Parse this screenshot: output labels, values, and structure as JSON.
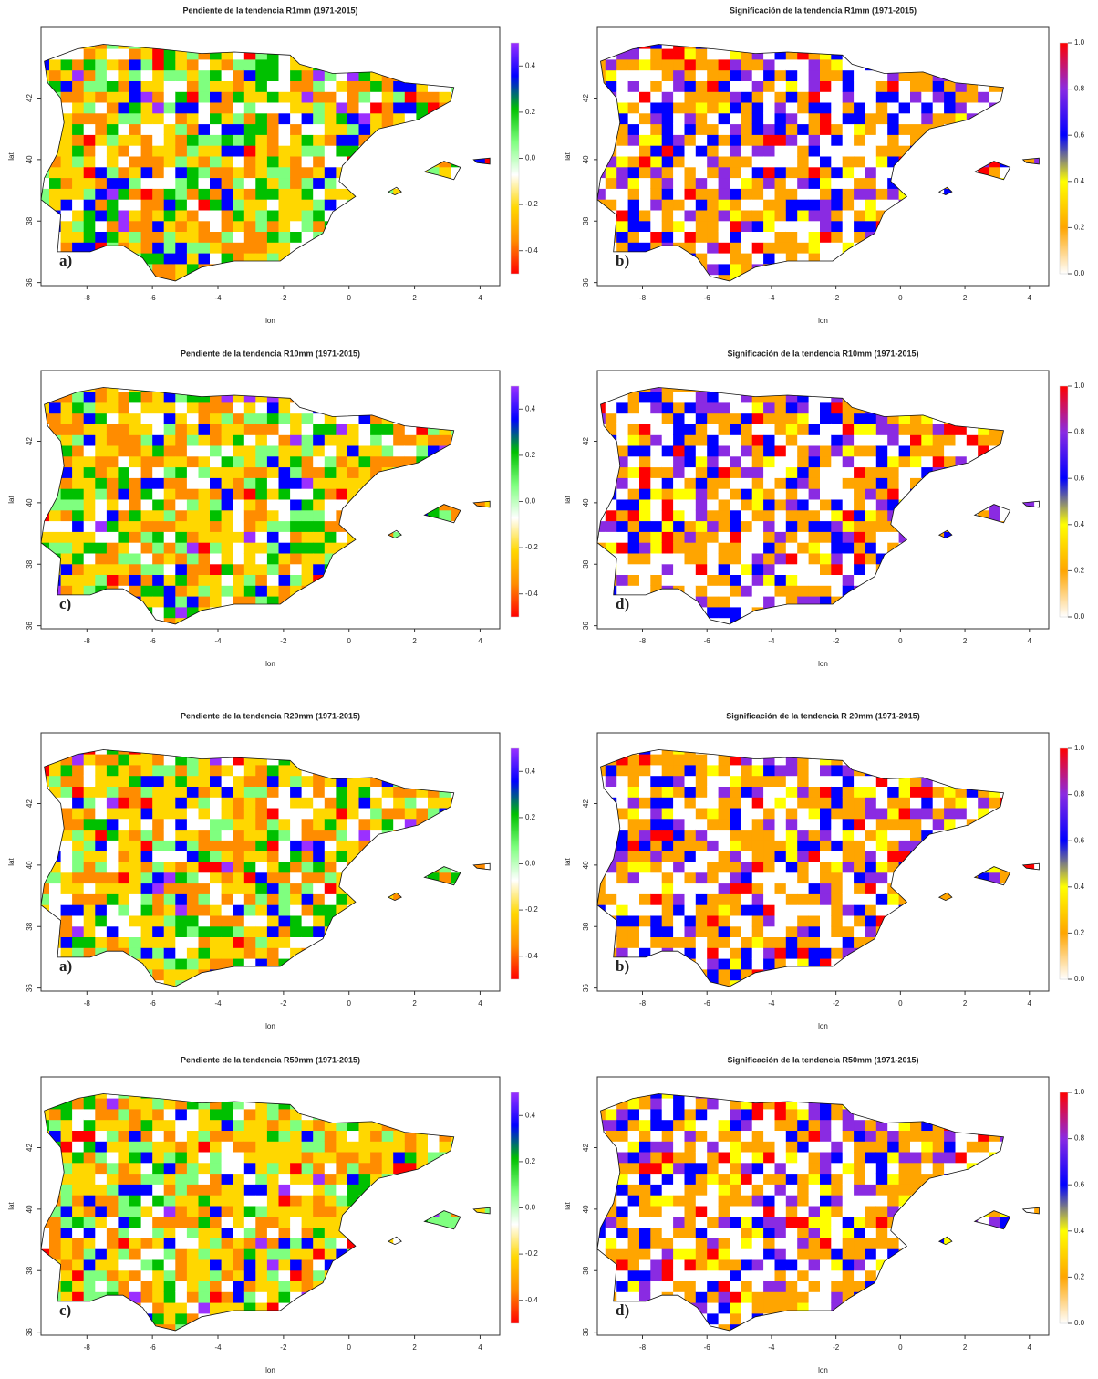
{
  "panels": [
    {
      "title": "Pendiente de la tendencia R1mm (1971-2015)",
      "letter": "a)",
      "kind": "slope",
      "xlabel": "lon",
      "ylabel": "lat",
      "xlim": [
        -9.4,
        4.6
      ],
      "xticks": [
        -8,
        -6,
        -4,
        -2,
        0,
        2,
        4
      ],
      "ylim": [
        35.9,
        44.3
      ],
      "yticks": [
        36,
        38,
        40,
        42
      ],
      "colorbar": {
        "lim": [
          -0.5,
          0.5
        ],
        "ticks": [
          -0.4,
          -0.2,
          {
            "value": 0,
            "label": "0.0"
          },
          0.2,
          0.4
        ],
        "colors": [
          "#ff0000",
          "#ff8c00",
          "#ffd700",
          "#ffffff",
          "#7fff7f",
          "#00c000",
          "#0000ff",
          "#9b30ff"
        ]
      }
    },
    {
      "title": "Significación de la tendencia R1mm (1971-2015)",
      "letter": "b)",
      "kind": "sig",
      "xlabel": "lon",
      "ylabel": "lat",
      "xlim": [
        -9.4,
        4.6
      ],
      "xticks": [
        -8,
        -6,
        -4,
        -2,
        0,
        2,
        4
      ],
      "ylim": [
        35.9,
        44.3
      ],
      "yticks": [
        36,
        38,
        40,
        42
      ],
      "colorbar": {
        "lim": [
          0,
          1
        ],
        "ticks": [
          {
            "value": 0,
            "label": "0.0"
          },
          0.2,
          0.4,
          0.6,
          0.8,
          {
            "value": 1,
            "label": "1.0"
          }
        ],
        "colors": [
          "#ffffff",
          "#ffa500",
          "#ffff00",
          "#0000ff",
          "#8a2be2",
          "#ff0000"
        ]
      }
    },
    {
      "title": "Pendiente de la tendencia R10mm (1971-2015)",
      "letter": "c)",
      "kind": "slope",
      "xlabel": "lon",
      "ylabel": "lat",
      "xlim": [
        -9.4,
        4.6
      ],
      "xticks": [
        -8,
        -6,
        -4,
        -2,
        0,
        2,
        4
      ],
      "ylim": [
        35.9,
        44.3
      ],
      "yticks": [
        36,
        38,
        40,
        42
      ],
      "colorbar": {
        "lim": [
          -0.5,
          0.5
        ],
        "ticks": [
          -0.4,
          -0.2,
          {
            "value": 0,
            "label": "0.0"
          },
          0.2,
          0.4
        ],
        "colors": [
          "#ff0000",
          "#ff8c00",
          "#ffd700",
          "#ffffff",
          "#7fff7f",
          "#00c000",
          "#0000ff",
          "#9b30ff"
        ]
      }
    },
    {
      "title": "Significación de la tendencia R10mm (1971-2015)",
      "letter": "d)",
      "kind": "sig",
      "xlabel": "lon",
      "ylabel": "lat",
      "xlim": [
        -9.4,
        4.6
      ],
      "xticks": [
        -8,
        -6,
        -4,
        -2,
        0,
        2,
        4
      ],
      "ylim": [
        35.9,
        44.3
      ],
      "yticks": [
        36,
        38,
        40,
        42
      ],
      "colorbar": {
        "lim": [
          0,
          1
        ],
        "ticks": [
          {
            "value": 0,
            "label": "0.0"
          },
          0.2,
          0.4,
          0.6,
          0.8,
          {
            "value": 1,
            "label": "1.0"
          }
        ],
        "colors": [
          "#ffffff",
          "#ffa500",
          "#ffff00",
          "#0000ff",
          "#8a2be2",
          "#ff0000"
        ]
      }
    },
    {
      "title": "Pendiente de la tendencia R20mm (1971-2015)",
      "letter": "a)",
      "kind": "slope",
      "xlabel": "lon",
      "ylabel": "lat",
      "xlim": [
        -9.4,
        4.6
      ],
      "xticks": [
        -8,
        -6,
        -4,
        -2,
        0,
        2,
        4
      ],
      "ylim": [
        35.9,
        44.3
      ],
      "yticks": [
        36,
        38,
        40,
        42
      ],
      "colorbar": {
        "lim": [
          -0.5,
          0.5
        ],
        "ticks": [
          -0.4,
          -0.2,
          {
            "value": 0,
            "label": "0.0"
          },
          0.2,
          0.4
        ],
        "colors": [
          "#ff0000",
          "#ff8c00",
          "#ffd700",
          "#ffffff",
          "#7fff7f",
          "#00c000",
          "#0000ff",
          "#9b30ff"
        ]
      }
    },
    {
      "title": "Significación de la tendencia R 20mm (1971-2015)",
      "letter": "b)",
      "kind": "sig",
      "xlabel": "lon",
      "ylabel": "lat",
      "xlim": [
        -9.4,
        4.6
      ],
      "xticks": [
        -8,
        -6,
        -4,
        -2,
        0,
        2,
        4
      ],
      "ylim": [
        35.9,
        44.3
      ],
      "yticks": [
        36,
        38,
        40,
        42
      ],
      "colorbar": {
        "lim": [
          0,
          1
        ],
        "ticks": [
          {
            "value": 0,
            "label": "0.0"
          },
          0.2,
          0.4,
          0.6,
          0.8,
          {
            "value": 1,
            "label": "1.0"
          }
        ],
        "colors": [
          "#ffffff",
          "#ffa500",
          "#ffff00",
          "#0000ff",
          "#8a2be2",
          "#ff0000"
        ]
      }
    },
    {
      "title": "Pendiente de la tendencia R50mm (1971-2015)",
      "letter": "c)",
      "kind": "slope",
      "xlabel": "lon",
      "ylabel": "lat",
      "xlim": [
        -9.4,
        4.6
      ],
      "xticks": [
        -8,
        -6,
        -4,
        -2,
        0,
        2,
        4
      ],
      "ylim": [
        35.9,
        44.3
      ],
      "yticks": [
        36,
        38,
        40,
        42
      ],
      "colorbar": {
        "lim": [
          -0.5,
          0.5
        ],
        "ticks": [
          -0.4,
          -0.2,
          {
            "value": 0,
            "label": "0.0"
          },
          0.2,
          0.4
        ],
        "colors": [
          "#ff0000",
          "#ff8c00",
          "#ffd700",
          "#ffffff",
          "#7fff7f",
          "#00c000",
          "#0000ff",
          "#9b30ff"
        ]
      }
    },
    {
      "title": "Significación de la tendencia R50mm (1971-2015)",
      "letter": "d)",
      "kind": "sig",
      "xlabel": "lon",
      "ylabel": "lat",
      "xlim": [
        -9.4,
        4.6
      ],
      "xticks": [
        -8,
        -6,
        -4,
        -2,
        0,
        2,
        4
      ],
      "ylim": [
        35.9,
        44.3
      ],
      "yticks": [
        36,
        38,
        40,
        42
      ],
      "colorbar": {
        "lim": [
          0,
          1
        ],
        "ticks": [
          {
            "value": 0,
            "label": "0.0"
          },
          0.2,
          0.4,
          0.6,
          0.8,
          {
            "value": 1,
            "label": "1.0"
          }
        ],
        "colors": [
          "#ffffff",
          "#ffa500",
          "#ffff00",
          "#0000ff",
          "#8a2be2",
          "#ff0000"
        ]
      }
    }
  ]
}
